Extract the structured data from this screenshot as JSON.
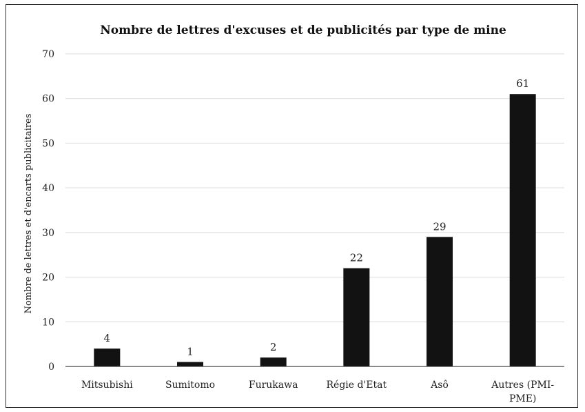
{
  "chart_data": {
    "type": "bar",
    "title": "Nombre de lettres d'excuses et de publicités par type de mine",
    "xlabel": "",
    "ylabel": "Nombre de lettres et d'encarts publicitaires",
    "categories": [
      "Mitsubishi",
      "Sumitomo",
      "Furukawa",
      "Régie d'Etat",
      "Asô",
      "Autres (PMI-PME)"
    ],
    "category_lines": [
      [
        "Mitsubishi"
      ],
      [
        "Sumitomo"
      ],
      [
        "Furukawa"
      ],
      [
        "Régie d'Etat"
      ],
      [
        "Asô"
      ],
      [
        "Autres (PMI-",
        "PME)"
      ]
    ],
    "values": [
      4,
      1,
      2,
      22,
      29,
      61
    ],
    "data_labels": [
      "4",
      "1",
      "2",
      "22",
      "29",
      "61"
    ],
    "ylim": [
      0,
      70
    ],
    "yticks": [
      "0",
      "10",
      "20",
      "30",
      "40",
      "50",
      "60",
      "70"
    ],
    "grid": true,
    "legend": "none",
    "bar_color": "#121212"
  }
}
